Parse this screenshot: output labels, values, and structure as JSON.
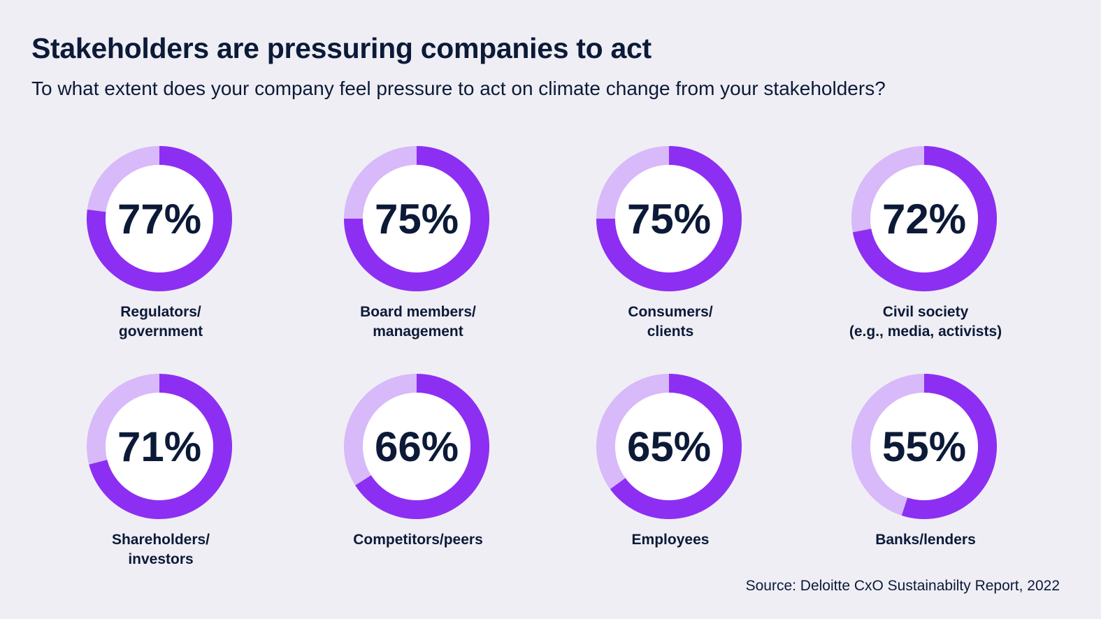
{
  "title": "Stakeholders are pressuring companies to act",
  "subtitle": "To what extent does your company feel pressure to act on climate change from your stakeholders?",
  "source": "Source: Deloitte CxO Sustainabilty Report, 2022",
  "colors": {
    "filled": "#8d2ff2",
    "remainder": "#d8b9f9",
    "center": "#ffffff",
    "text": "#0c1a38",
    "background": "#efeef4"
  },
  "chart_data": {
    "type": "pie",
    "categories": [
      "Regulators/ government",
      "Board members/ management",
      "Consumers/ clients",
      "Civil society (e.g., media, activists)",
      "Shareholders/ investors",
      "Competitors/peers",
      "Employees",
      "Banks/lenders"
    ],
    "values": [
      77,
      75,
      75,
      72,
      71,
      66,
      65,
      55
    ],
    "unit": "%",
    "items": [
      {
        "label_lines": [
          "Regulators/",
          "government"
        ],
        "value": 77,
        "display": "77%"
      },
      {
        "label_lines": [
          "Board members/",
          "management"
        ],
        "value": 75,
        "display": "75%"
      },
      {
        "label_lines": [
          "Consumers/",
          "clients"
        ],
        "value": 75,
        "display": "75%"
      },
      {
        "label_lines": [
          "Civil society",
          "(e.g., media, activists)"
        ],
        "value": 72,
        "display": "72%"
      },
      {
        "label_lines": [
          "Shareholders/",
          "investors"
        ],
        "value": 71,
        "display": "71%"
      },
      {
        "label_lines": [
          "Competitors/peers"
        ],
        "value": 66,
        "display": "66%"
      },
      {
        "label_lines": [
          "Employees"
        ],
        "value": 65,
        "display": "65%"
      },
      {
        "label_lines": [
          "Banks/lenders"
        ],
        "value": 55,
        "display": "55%"
      }
    ]
  }
}
